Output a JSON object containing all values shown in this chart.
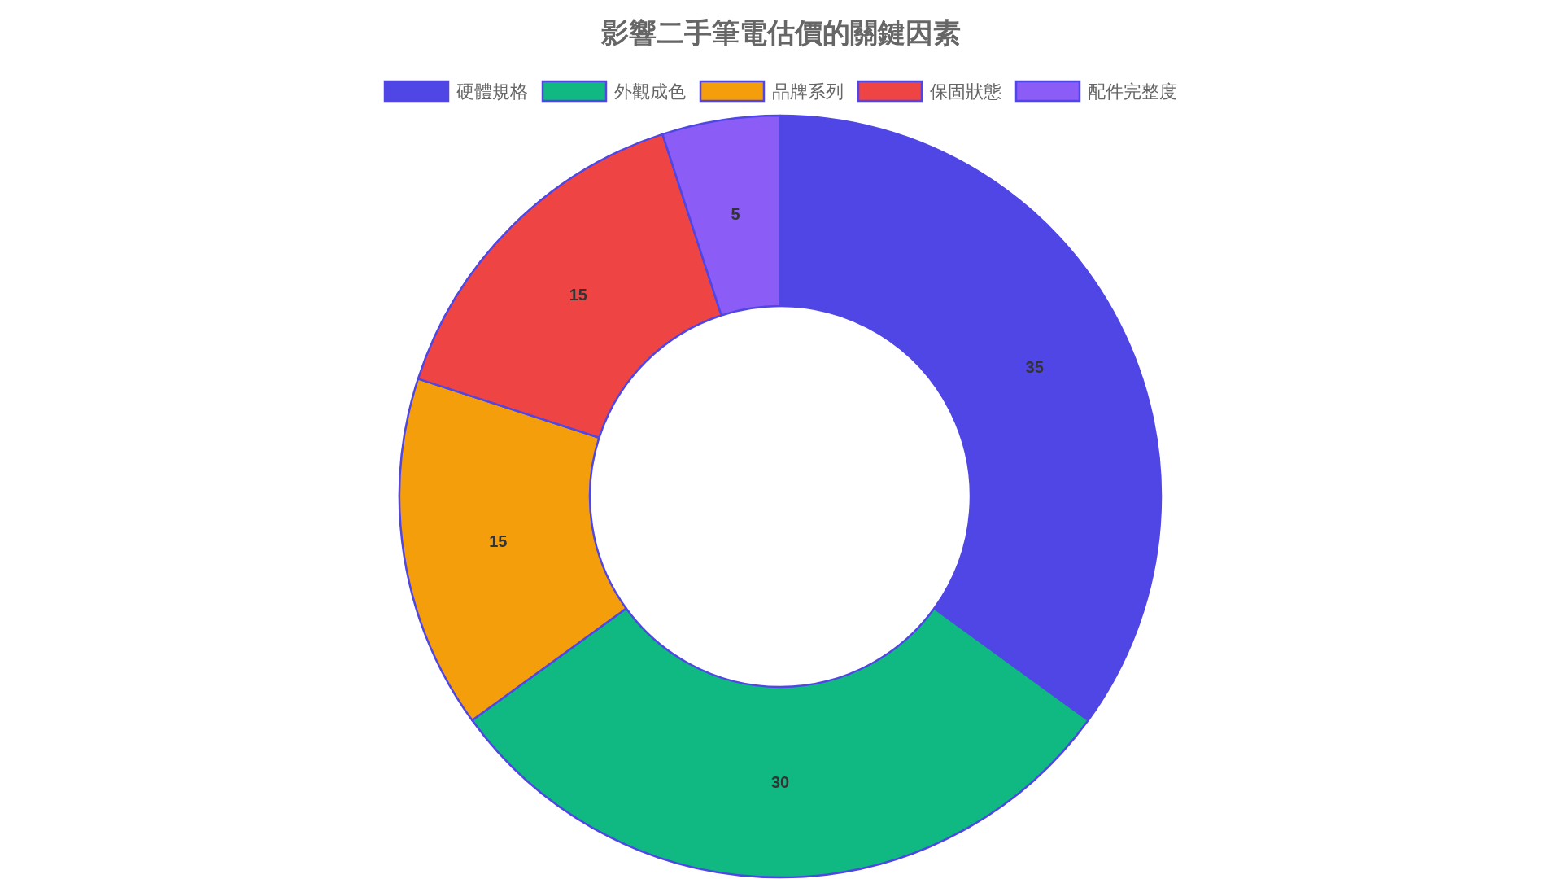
{
  "chart_data": {
    "type": "donut",
    "title": "影響二手筆電估價的關鍵因素",
    "categories": [
      "硬體規格",
      "外觀成色",
      "品牌系列",
      "保固狀態",
      "配件完整度"
    ],
    "values": [
      35,
      30,
      15,
      15,
      5
    ],
    "colors": [
      "#4f46e5",
      "#10b981",
      "#f59e0b",
      "#ef4444",
      "#8b5cf6"
    ],
    "data_labels": true,
    "legend": "top"
  }
}
